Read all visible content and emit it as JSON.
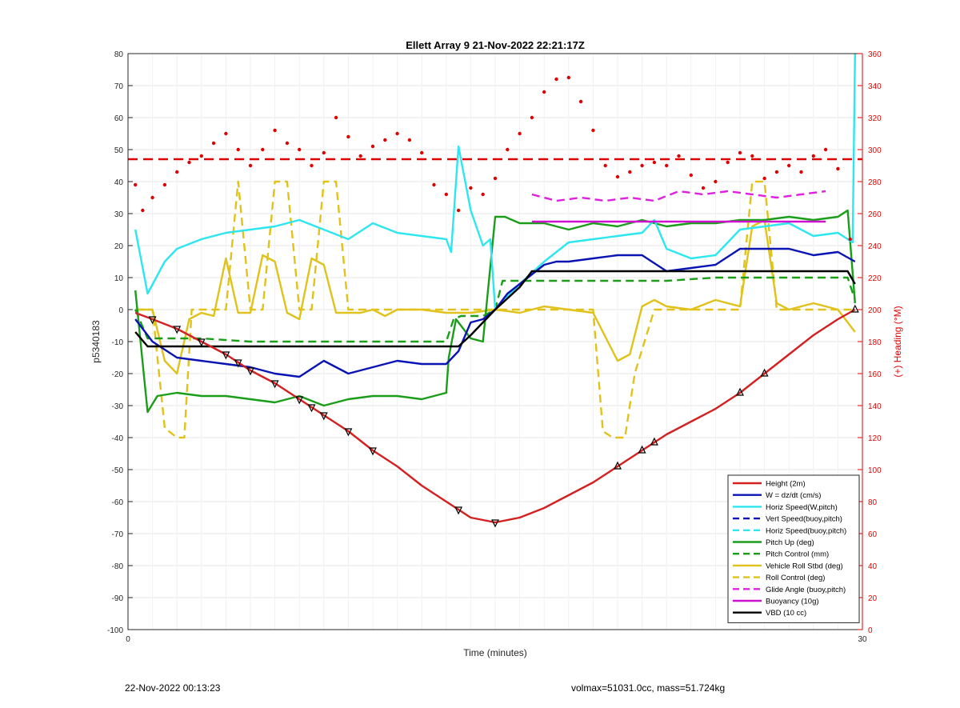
{
  "chart_data": {
    "type": "line",
    "title": "Ellett Array 9 21-Nov-2022 22:21:17Z",
    "xlabel": "Time (minutes)",
    "ylabel": "p5340183",
    "y2label": "(+) Heading (°M)",
    "xlim": [
      0,
      30
    ],
    "ylim": [
      -100,
      80
    ],
    "y2lim": [
      0,
      360
    ],
    "xticks": [
      "0",
      "30"
    ],
    "yticks": [
      80,
      70,
      60,
      50,
      40,
      30,
      20,
      10,
      0,
      -10,
      -20,
      -30,
      -40,
      -50,
      -60,
      -70,
      -80,
      -90,
      -100
    ],
    "y2ticks": [
      360,
      340,
      320,
      300,
      280,
      260,
      240,
      220,
      200,
      180,
      160,
      140,
      120,
      100,
      80,
      60,
      40,
      20,
      0
    ],
    "grid": true,
    "legend_position": "bottom-right",
    "colors": {
      "height": "#d42020",
      "w": "#0a14b4",
      "horiz": "#2ee6f0",
      "pitch": "#1a9e1a",
      "roll": "#e0c21a",
      "glide": "#e020e0",
      "buoy": "#d010d0",
      "vbd": "#000000",
      "heading": "#e00000"
    },
    "series": [
      {
        "name": "Height (2m)",
        "color": "#d42020",
        "style": "solid",
        "axis": "left",
        "key": "height",
        "x": [
          0.3,
          1,
          2,
          3,
          4,
          5,
          6,
          7,
          8,
          9,
          10,
          11,
          12,
          13,
          14,
          15,
          16,
          17,
          18,
          19,
          20,
          21,
          22,
          23,
          24,
          25,
          26,
          27,
          28,
          29,
          29.7
        ],
        "y": [
          -1,
          -3,
          -6,
          -10,
          -14,
          -19,
          -23,
          -28,
          -33,
          -38,
          -44,
          -49,
          -55,
          -60,
          -65,
          -66.5,
          -65,
          -62,
          -58,
          -54,
          -49,
          -44,
          -39,
          -35,
          -31,
          -26,
          -20,
          -14,
          -8,
          -3,
          0
        ]
      },
      {
        "name": "W = dz/dt (cm/s)",
        "color": "#0a14b4",
        "style": "solid",
        "axis": "left",
        "key": "w",
        "x": [
          0.3,
          1,
          2,
          3,
          4,
          5,
          6,
          7,
          8,
          9,
          10,
          11,
          12,
          13,
          13.5,
          14,
          14.5,
          15,
          15.5,
          16,
          17,
          17.5,
          18,
          19,
          20,
          21,
          22,
          23,
          24,
          25,
          26,
          27,
          28,
          29,
          29.7
        ],
        "y": [
          -3,
          -10,
          -15,
          -16,
          -17,
          -18,
          -20,
          -21,
          -16,
          -20,
          -18,
          -16,
          -17,
          -17,
          -13,
          -4,
          -3,
          0,
          5,
          8,
          14,
          15,
          15,
          16,
          17,
          17,
          12,
          13,
          14,
          19,
          19,
          19,
          17,
          18,
          15
        ]
      },
      {
        "name": "Horiz Speed(W,pitch)",
        "color": "#2ee6f0",
        "style": "solid",
        "axis": "left",
        "key": "horiz",
        "x": [
          0.3,
          0.8,
          1.5,
          2,
          3,
          4,
          5,
          6,
          7,
          8,
          9,
          10,
          11,
          12,
          13,
          13.2,
          13.5,
          14,
          14.5,
          14.8,
          15,
          15.5,
          16,
          17,
          18,
          19,
          20,
          21,
          21.5,
          22,
          23,
          24,
          25,
          26,
          27,
          28,
          29,
          29.6,
          29.7
        ],
        "y": [
          25,
          5,
          15,
          19,
          22,
          24,
          25,
          26,
          28,
          25,
          22,
          27,
          24,
          23,
          22,
          18,
          51,
          31,
          20,
          22,
          0,
          4,
          8,
          15,
          21,
          22,
          23,
          24,
          28,
          19,
          16,
          17,
          25,
          26,
          27,
          23,
          24,
          21,
          80
        ]
      },
      {
        "name": "Vert Speed(buoy,pitch)",
        "color": "#0a14b4",
        "style": "dashed",
        "axis": "left",
        "key": "vert_buoy",
        "x": [],
        "y": []
      },
      {
        "name": "Horiz Speed(buoy,pitch)",
        "color": "#2ee6f0",
        "style": "dashed",
        "axis": "left",
        "key": "horiz_buoy",
        "x": [],
        "y": []
      },
      {
        "name": "Pitch Up (deg)",
        "color": "#1a9e1a",
        "style": "solid",
        "axis": "left",
        "key": "pitch",
        "x": [
          0.3,
          0.8,
          1.2,
          2,
          3,
          4,
          5,
          6,
          7,
          8,
          9,
          10,
          11,
          12,
          13,
          13.1,
          13.4,
          14,
          14.5,
          15,
          15.4,
          16,
          17,
          18,
          19,
          20,
          21,
          22,
          23,
          24,
          25,
          26,
          27,
          28,
          29,
          29.4,
          29.7
        ],
        "y": [
          6,
          -32,
          -27,
          -26,
          -27,
          -27,
          -28,
          -29,
          -27,
          -30,
          -28,
          -27,
          -27,
          -28,
          -26,
          -15,
          -3,
          -9,
          -10,
          29,
          29,
          27,
          27,
          25,
          27,
          26,
          28,
          26,
          27,
          27,
          28,
          28,
          29,
          28,
          29,
          31,
          2
        ]
      },
      {
        "name": "Pitch Control (mm)",
        "color": "#1a9e1a",
        "style": "dashed",
        "axis": "left",
        "key": "pitch_ctrl",
        "x": [
          0.3,
          0.8,
          3,
          5,
          7,
          9,
          11,
          13,
          13.3,
          13.6,
          14.5,
          15,
          15.3,
          16,
          18,
          20,
          22,
          24,
          26,
          28,
          29.4,
          29.7
        ],
        "y": [
          0,
          -9,
          -9,
          -10,
          -10,
          -10,
          -10,
          -10,
          -3,
          -2,
          -2,
          0,
          9,
          9,
          9,
          9,
          9,
          10,
          10,
          10,
          10,
          3
        ]
      },
      {
        "name": "Vehicle Roll Stbd (deg)",
        "color": "#e0c21a",
        "style": "solid",
        "axis": "left",
        "key": "roll",
        "x": [
          0.3,
          1,
          1.5,
          2,
          2.5,
          3,
          3.5,
          4,
          4.5,
          5,
          5.5,
          6,
          6.5,
          7,
          7.5,
          8,
          8.5,
          9,
          9.5,
          10,
          10.5,
          11,
          12,
          13,
          14,
          15,
          16,
          17,
          18,
          19,
          20,
          20.5,
          21,
          21.5,
          22,
          23,
          24,
          25,
          25.5,
          26,
          26.5,
          27,
          27.5,
          28,
          29,
          29.7
        ],
        "y": [
          0,
          0,
          -16,
          -20,
          -3,
          -1,
          -2,
          16,
          -1,
          -1,
          17,
          15,
          -1,
          -3,
          16,
          14,
          -1,
          -1,
          -1,
          0,
          -2,
          0,
          0,
          -1,
          -1,
          0,
          -1,
          1,
          0,
          -1,
          -16,
          -14,
          1,
          3,
          1,
          0,
          3,
          1,
          26,
          28,
          2,
          0,
          1,
          2,
          0,
          -7
        ]
      },
      {
        "name": "Roll Control (deg)",
        "color": "#e0c21a",
        "style": "dashed",
        "axis": "left",
        "key": "roll_ctrl",
        "x": [
          0.3,
          1,
          1.5,
          2,
          2.3,
          2.6,
          3,
          4,
          4.5,
          5,
          5.5,
          6,
          6.5,
          7,
          7.5,
          8,
          8.5,
          9,
          10,
          11,
          12,
          13,
          14,
          15,
          16,
          18,
          19,
          19.4,
          19.8,
          20.3,
          20.7,
          21.5,
          23,
          24,
          25,
          25.5,
          26,
          26.5,
          27,
          28,
          29,
          29.7
        ],
        "y": [
          0,
          0,
          -37,
          -40,
          -40,
          0,
          0,
          0,
          40,
          0,
          0,
          40,
          40,
          0,
          0,
          40,
          40,
          0,
          0,
          0,
          0,
          0,
          0,
          0,
          0,
          0,
          0,
          -38,
          -40,
          -40,
          -20,
          0,
          0,
          0,
          0,
          40,
          40,
          0,
          0,
          0,
          0,
          0
        ]
      },
      {
        "name": "Glide Angle (buoy,pitch)",
        "color": "#e020e0",
        "style": "dashed",
        "axis": "left",
        "key": "glide",
        "x": [
          16.5,
          17.5,
          18.5,
          19.5,
          20.5,
          21.5,
          22.5,
          23.5,
          24.5,
          25.5,
          26.5,
          27.5,
          28.5
        ],
        "y": [
          36,
          34,
          35,
          34,
          35,
          34,
          37,
          36,
          37,
          36,
          35,
          36,
          37
        ]
      },
      {
        "name": "Buoyancy (10g)",
        "color": "#d010d0",
        "style": "solid",
        "axis": "left",
        "key": "buoy",
        "x": [
          16.5,
          28.5
        ],
        "y": [
          27.5,
          27.5
        ]
      },
      {
        "name": "VBD (10 cc)",
        "color": "#000000",
        "style": "solid",
        "axis": "left",
        "key": "vbd",
        "x": [
          0.3,
          0.8,
          3,
          5,
          7,
          9,
          11,
          13,
          13.5,
          14,
          15,
          16,
          16.5,
          20,
          24,
          28,
          29.4,
          29.7
        ],
        "y": [
          -7,
          -11.5,
          -11.5,
          -11.5,
          -11.5,
          -11.5,
          -11.5,
          -11.5,
          -11.5,
          -8,
          0,
          7,
          12,
          12,
          12,
          12,
          12,
          8
        ]
      }
    ],
    "heading_dots": {
      "color": "#e00000",
      "reference_line": 294,
      "x": [
        0.3,
        0.6,
        1.0,
        1.5,
        2.0,
        2.5,
        3.0,
        3.5,
        4.0,
        4.5,
        5.0,
        5.5,
        6.0,
        6.5,
        7.0,
        7.5,
        8.0,
        8.5,
        9.0,
        9.5,
        10.0,
        10.5,
        11.0,
        11.5,
        12.0,
        12.5,
        13.0,
        13.5,
        14.0,
        14.5,
        15.0,
        15.5,
        16.0,
        16.5,
        17.0,
        17.5,
        18.0,
        18.5,
        19.0,
        19.5,
        20.0,
        20.5,
        21.0,
        21.5,
        22.0,
        22.5,
        23.0,
        23.5,
        24.0,
        24.5,
        25.0,
        25.5,
        26.0,
        26.5,
        27.0,
        27.5,
        28.0,
        28.5,
        29.0,
        29.5
      ],
      "y": [
        278,
        262,
        270,
        278,
        286,
        292,
        296,
        304,
        310,
        300,
        290,
        300,
        312,
        304,
        300,
        290,
        298,
        320,
        308,
        296,
        302,
        306,
        310,
        306,
        298,
        278,
        272,
        262,
        276,
        272,
        282,
        300,
        310,
        320,
        336,
        344,
        345,
        330,
        312,
        290,
        283,
        286,
        290,
        292,
        290,
        296,
        284,
        276,
        280,
        292,
        298,
        296,
        282,
        286,
        290,
        286,
        296,
        300,
        288,
        244
      ]
    }
  },
  "footer": {
    "left": "22-Nov-2022 00:13:23",
    "right": "volmax=51031.0cc, mass=51.724kg"
  }
}
